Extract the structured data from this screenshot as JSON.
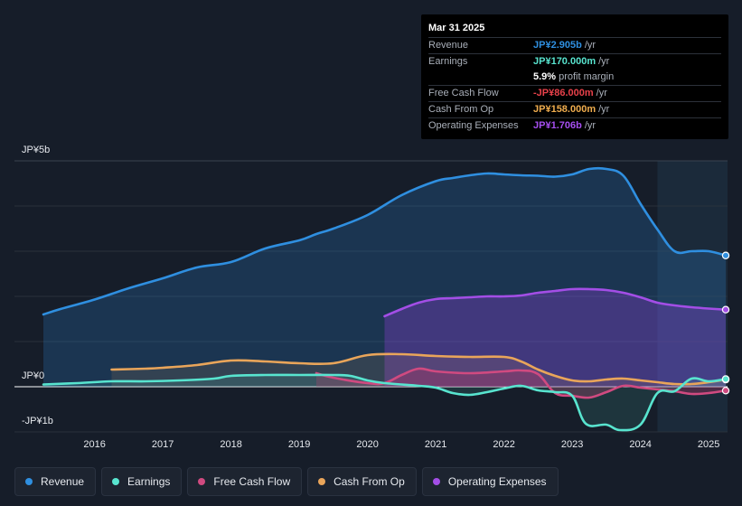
{
  "tooltip": {
    "date": "Mar 31 2025",
    "rows": [
      {
        "label": "Revenue",
        "value": "JP¥2.905b",
        "unit": "/yr",
        "color": "#2f8fe0"
      },
      {
        "label": "Earnings",
        "value": "JP¥170.000m",
        "unit": "/yr",
        "color": "#58e4cf"
      },
      {
        "label": "",
        "value": "5.9%",
        "unit": "profit margin",
        "color": "#ffffff"
      },
      {
        "label": "Free Cash Flow",
        "value": "-JP¥86.000m",
        "unit": "/yr",
        "color": "#e8414a"
      },
      {
        "label": "Cash From Op",
        "value": "JP¥158.000m",
        "unit": "/yr",
        "color": "#f0ad4e"
      },
      {
        "label": "Operating Expenses",
        "value": "JP¥1.706b",
        "unit": "/yr",
        "color": "#a64ff0"
      }
    ]
  },
  "legend": [
    {
      "label": "Revenue",
      "color": "#2f8fe0"
    },
    {
      "label": "Earnings",
      "color": "#58e4cf"
    },
    {
      "label": "Free Cash Flow",
      "color": "#d04a80"
    },
    {
      "label": "Cash From Op",
      "color": "#e9a55a"
    },
    {
      "label": "Operating Expenses",
      "color": "#a34ee6"
    }
  ],
  "chart_data": {
    "type": "area",
    "title": "",
    "xlabel": "",
    "ylabel": "",
    "ylim": [
      -1,
      5
    ],
    "y_tick_labels": [
      "JP¥5b",
      "JP¥0",
      "-JP¥1b"
    ],
    "y_tick_values": [
      5,
      0,
      -1
    ],
    "x_ticks": [
      2016,
      2017,
      2018,
      2019,
      2020,
      2021,
      2022,
      2023,
      2024,
      2025
    ],
    "x_tick_labels": [
      "2016",
      "2017",
      "2018",
      "2019",
      "2020",
      "2021",
      "2022",
      "2023",
      "2024",
      "2025"
    ],
    "xlim": [
      2015.2,
      2025.25
    ],
    "highlight_start": 2024.25,
    "units": "JP¥ billions",
    "series": [
      {
        "name": "Revenue",
        "color": "#2f8fe0",
        "x": [
          2015.25,
          2015.5,
          2016.0,
          2016.5,
          2017.0,
          2017.5,
          2018.0,
          2018.5,
          2019.0,
          2019.25,
          2019.5,
          2020.0,
          2020.5,
          2021.0,
          2021.25,
          2021.5,
          2021.75,
          2022.0,
          2022.25,
          2022.5,
          2022.75,
          2023.0,
          2023.25,
          2023.5,
          2023.75,
          2024.0,
          2024.25,
          2024.5,
          2024.75,
          2025.0,
          2025.25
        ],
        "values": [
          1.6,
          1.72,
          1.93,
          2.18,
          2.4,
          2.64,
          2.76,
          3.06,
          3.24,
          3.38,
          3.5,
          3.8,
          4.24,
          4.55,
          4.62,
          4.68,
          4.72,
          4.7,
          4.68,
          4.67,
          4.65,
          4.7,
          4.82,
          4.82,
          4.67,
          4.05,
          3.48,
          3.0,
          3.0,
          3.0,
          2.905
        ]
      },
      {
        "name": "Earnings",
        "color": "#58e4cf",
        "x": [
          2015.25,
          2015.75,
          2016.25,
          2016.75,
          2017.25,
          2017.75,
          2018.0,
          2018.5,
          2019.0,
          2019.5,
          2019.75,
          2020.0,
          2020.25,
          2020.75,
          2021.0,
          2021.25,
          2021.5,
          2021.75,
          2022.0,
          2022.25,
          2022.5,
          2022.75,
          2023.0,
          2023.2,
          2023.5,
          2023.7,
          2024.0,
          2024.25,
          2024.5,
          2024.75,
          2025.0,
          2025.25
        ],
        "values": [
          0.05,
          0.08,
          0.12,
          0.12,
          0.14,
          0.18,
          0.24,
          0.26,
          0.26,
          0.26,
          0.24,
          0.14,
          0.08,
          0.02,
          -0.02,
          -0.14,
          -0.18,
          -0.12,
          -0.04,
          0.02,
          -0.08,
          -0.12,
          -0.2,
          -0.82,
          -0.84,
          -0.96,
          -0.84,
          -0.14,
          -0.1,
          0.18,
          0.12,
          0.17
        ]
      },
      {
        "name": "Free Cash Flow",
        "color": "#d04a80",
        "x": [
          2019.25,
          2019.5,
          2020.0,
          2020.25,
          2020.5,
          2020.75,
          2021.0,
          2021.5,
          2022.0,
          2022.25,
          2022.5,
          2022.75,
          2023.0,
          2023.25,
          2023.5,
          2023.75,
          2024.0,
          2024.25,
          2024.5,
          2024.75,
          2025.0,
          2025.25
        ],
        "values": [
          0.3,
          0.2,
          0.08,
          0.08,
          0.26,
          0.4,
          0.34,
          0.3,
          0.34,
          0.36,
          0.28,
          -0.14,
          -0.2,
          -0.24,
          -0.12,
          0.02,
          -0.02,
          -0.06,
          -0.1,
          -0.16,
          -0.14,
          -0.086
        ]
      },
      {
        "name": "Cash From Op",
        "color": "#e9a55a",
        "x": [
          2016.25,
          2016.75,
          2017.0,
          2017.5,
          2018.0,
          2018.5,
          2019.0,
          2019.5,
          2020.0,
          2020.5,
          2021.0,
          2021.5,
          2022.0,
          2022.25,
          2022.5,
          2022.75,
          2023.0,
          2023.25,
          2023.5,
          2023.75,
          2024.0,
          2024.25,
          2024.5,
          2024.75,
          2025.0,
          2025.25
        ],
        "values": [
          0.38,
          0.4,
          0.42,
          0.48,
          0.58,
          0.56,
          0.52,
          0.52,
          0.7,
          0.72,
          0.68,
          0.66,
          0.66,
          0.56,
          0.38,
          0.24,
          0.14,
          0.12,
          0.16,
          0.18,
          0.14,
          0.1,
          0.06,
          0.06,
          0.1,
          0.158
        ]
      },
      {
        "name": "Operating Expenses",
        "color": "#a34ee6",
        "x": [
          2020.25,
          2020.5,
          2020.75,
          2021.0,
          2021.25,
          2021.5,
          2021.75,
          2022.0,
          2022.25,
          2022.5,
          2022.75,
          2023.0,
          2023.25,
          2023.5,
          2023.75,
          2024.0,
          2024.25,
          2024.5,
          2024.75,
          2025.0,
          2025.25
        ],
        "values": [
          1.56,
          1.72,
          1.86,
          1.94,
          1.96,
          1.98,
          2.0,
          2.0,
          2.02,
          2.08,
          2.12,
          2.16,
          2.16,
          2.14,
          2.08,
          1.98,
          1.86,
          1.8,
          1.76,
          1.73,
          1.706
        ]
      }
    ]
  }
}
